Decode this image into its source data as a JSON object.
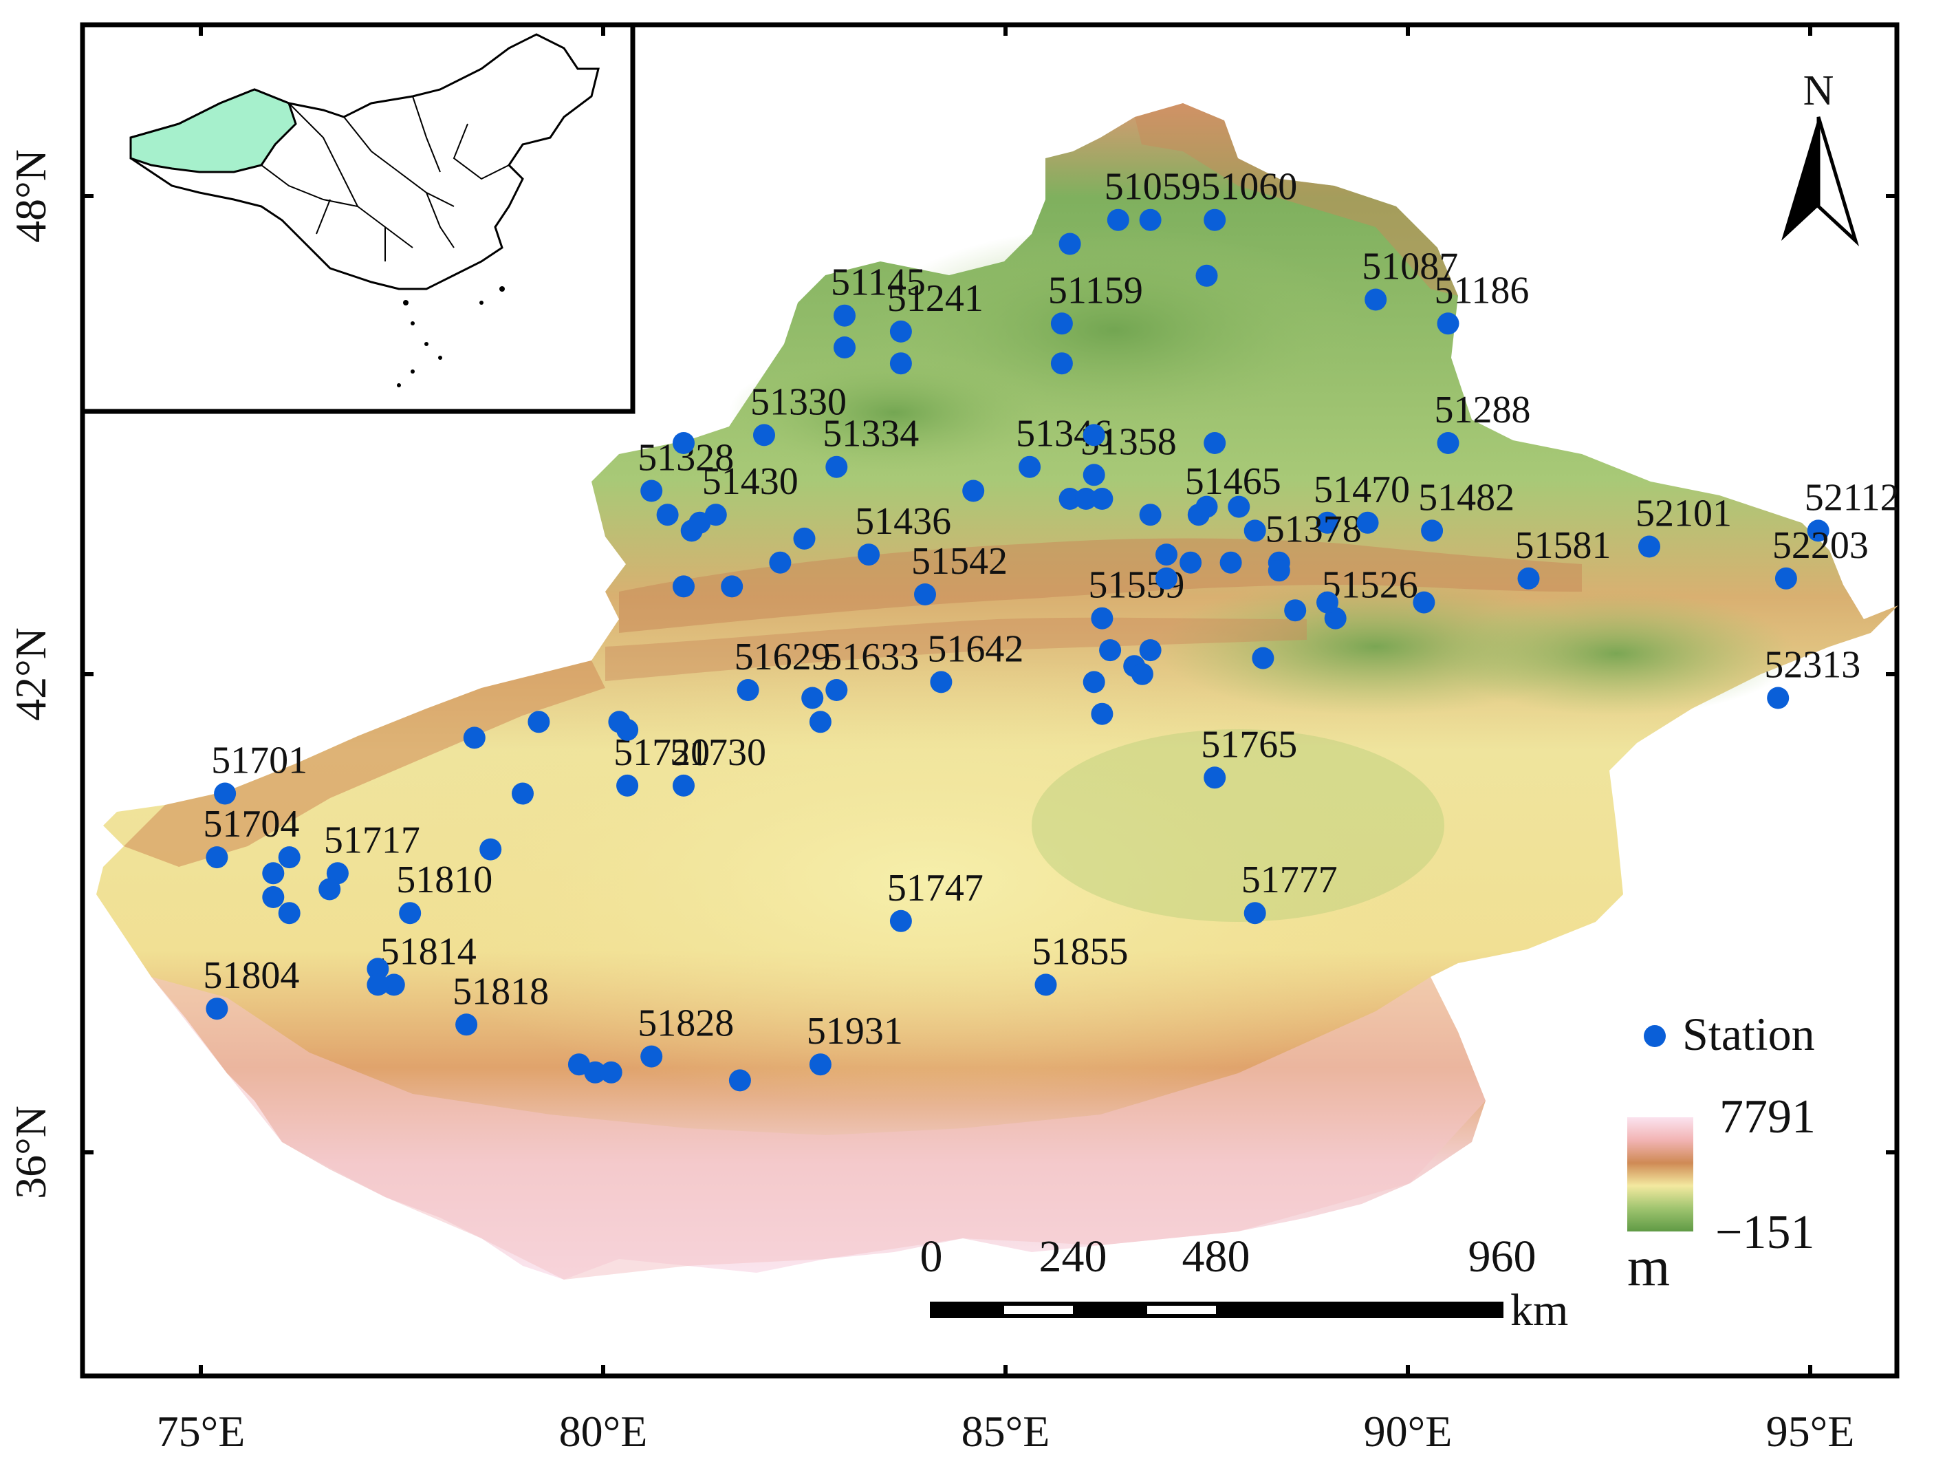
{
  "map": {
    "x_ticks": [
      "75°E",
      "80°E",
      "85°E",
      "90°E",
      "95°E"
    ],
    "y_ticks": [
      "48°N",
      "42°N",
      "36°N"
    ],
    "north_label": "N",
    "legend": {
      "station_label": "Station",
      "elevation_max": "7791",
      "elevation_min": "−151",
      "elevation_unit": "m",
      "colors": [
        "#fbe3ef",
        "#f2b4b4",
        "#cf8a55",
        "#f3e9a0",
        "#9fc46f",
        "#5f9a45"
      ]
    },
    "scale_bar": {
      "ticks": [
        "0",
        "240",
        "480",
        "960"
      ],
      "unit": "km"
    },
    "station_color": "#0a5fd8",
    "stations": [
      {
        "id": "51059",
        "lon": 86.4,
        "lat": 47.7,
        "labeled": true
      },
      {
        "id": "51060",
        "lon": 87.6,
        "lat": 47.7,
        "labeled": true
      },
      {
        "id": "51087",
        "lon": 89.6,
        "lat": 46.7,
        "labeled": true
      },
      {
        "id": "51186",
        "lon": 90.5,
        "lat": 46.4,
        "labeled": true
      },
      {
        "id": "51145",
        "lon": 83.0,
        "lat": 46.5,
        "labeled": true
      },
      {
        "id": "51241",
        "lon": 83.7,
        "lat": 46.3,
        "labeled": true
      },
      {
        "id": "51159",
        "lon": 85.7,
        "lat": 46.4,
        "labeled": true
      },
      {
        "id": "51288",
        "lon": 90.5,
        "lat": 44.9,
        "labeled": true
      },
      {
        "id": "51330",
        "lon": 82.0,
        "lat": 45.0,
        "labeled": true
      },
      {
        "id": "51334",
        "lon": 82.9,
        "lat": 44.6,
        "labeled": true
      },
      {
        "id": "51346",
        "lon": 85.3,
        "lat": 44.6,
        "labeled": true
      },
      {
        "id": "51358",
        "lon": 86.1,
        "lat": 44.5,
        "labeled": true
      },
      {
        "id": "51328",
        "lon": 80.6,
        "lat": 44.3,
        "labeled": true
      },
      {
        "id": "51430",
        "lon": 81.4,
        "lat": 44.0,
        "labeled": true
      },
      {
        "id": "51436",
        "lon": 83.3,
        "lat": 43.5,
        "labeled": true
      },
      {
        "id": "51465",
        "lon": 87.4,
        "lat": 44.0,
        "labeled": true
      },
      {
        "id": "51470",
        "lon": 89.0,
        "lat": 43.9,
        "labeled": true
      },
      {
        "id": "51482",
        "lon": 90.3,
        "lat": 43.8,
        "labeled": true
      },
      {
        "id": "51542",
        "lon": 84.0,
        "lat": 43.0,
        "labeled": true
      },
      {
        "id": "51378",
        "lon": 88.4,
        "lat": 43.4,
        "labeled": true
      },
      {
        "id": "51581",
        "lon": 91.5,
        "lat": 43.2,
        "labeled": true
      },
      {
        "id": "52101",
        "lon": 93.0,
        "lat": 43.6,
        "labeled": true
      },
      {
        "id": "52112",
        "lon": 95.1,
        "lat": 43.8,
        "labeled": true
      },
      {
        "id": "52203",
        "lon": 94.7,
        "lat": 43.2,
        "labeled": true
      },
      {
        "id": "51559",
        "lon": 86.2,
        "lat": 42.7,
        "labeled": true
      },
      {
        "id": "51526",
        "lon": 89.1,
        "lat": 42.7,
        "labeled": true
      },
      {
        "id": "51633",
        "lon": 82.9,
        "lat": 41.8,
        "labeled": true
      },
      {
        "id": "51642",
        "lon": 84.2,
        "lat": 41.9,
        "labeled": true
      },
      {
        "id": "52313",
        "lon": 94.6,
        "lat": 41.7,
        "labeled": true
      },
      {
        "id": "51629",
        "lon": 81.8,
        "lat": 41.8,
        "labeled": true
      },
      {
        "id": "51701",
        "lon": 75.3,
        "lat": 40.5,
        "labeled": true
      },
      {
        "id": "51720",
        "lon": 80.3,
        "lat": 40.6,
        "labeled": true
      },
      {
        "id": "51730",
        "lon": 81.0,
        "lat": 40.6,
        "labeled": true
      },
      {
        "id": "51765",
        "lon": 87.6,
        "lat": 40.7,
        "labeled": true
      },
      {
        "id": "51704",
        "lon": 75.2,
        "lat": 39.7,
        "labeled": true
      },
      {
        "id": "51717",
        "lon": 76.7,
        "lat": 39.5,
        "labeled": true
      },
      {
        "id": "51810",
        "lon": 77.6,
        "lat": 39.0,
        "labeled": true
      },
      {
        "id": "51747",
        "lon": 83.7,
        "lat": 38.9,
        "labeled": true
      },
      {
        "id": "51777",
        "lon": 88.1,
        "lat": 39.0,
        "labeled": true
      },
      {
        "id": "51855",
        "lon": 85.5,
        "lat": 38.1,
        "labeled": true
      },
      {
        "id": "51804",
        "lon": 75.2,
        "lat": 37.8,
        "labeled": true
      },
      {
        "id": "51814",
        "lon": 77.4,
        "lat": 38.1,
        "labeled": true
      },
      {
        "id": "51818",
        "lon": 78.3,
        "lat": 37.6,
        "labeled": true
      },
      {
        "id": "51828",
        "lon": 80.6,
        "lat": 37.2,
        "labeled": true
      },
      {
        "id": "51931",
        "lon": 82.7,
        "lat": 37.1,
        "labeled": true
      },
      {
        "lon": 86.8,
        "lat": 47.7
      },
      {
        "lon": 85.8,
        "lat": 47.4
      },
      {
        "lon": 87.5,
        "lat": 47.0
      },
      {
        "lon": 83.0,
        "lat": 46.1
      },
      {
        "lon": 83.7,
        "lat": 45.9
      },
      {
        "lon": 85.7,
        "lat": 45.9
      },
      {
        "lon": 81.0,
        "lat": 44.9
      },
      {
        "lon": 84.6,
        "lat": 44.3
      },
      {
        "lon": 86.1,
        "lat": 45.0
      },
      {
        "lon": 87.6,
        "lat": 44.9
      },
      {
        "lon": 85.8,
        "lat": 44.2
      },
      {
        "lon": 86.0,
        "lat": 44.2
      },
      {
        "lon": 86.2,
        "lat": 44.2
      },
      {
        "lon": 80.8,
        "lat": 44.0
      },
      {
        "lon": 81.1,
        "lat": 43.8
      },
      {
        "lon": 81.2,
        "lat": 43.9
      },
      {
        "lon": 82.5,
        "lat": 43.7
      },
      {
        "lon": 82.2,
        "lat": 43.4
      },
      {
        "lon": 81.0,
        "lat": 43.1
      },
      {
        "lon": 81.6,
        "lat": 43.1
      },
      {
        "lon": 86.8,
        "lat": 44.0
      },
      {
        "lon": 87.5,
        "lat": 44.1
      },
      {
        "lon": 87.9,
        "lat": 44.1
      },
      {
        "lon": 88.1,
        "lat": 43.8
      },
      {
        "lon": 89.5,
        "lat": 43.9
      },
      {
        "lon": 87.0,
        "lat": 43.5
      },
      {
        "lon": 87.3,
        "lat": 43.4
      },
      {
        "lon": 87.8,
        "lat": 43.4
      },
      {
        "lon": 87.0,
        "lat": 43.2
      },
      {
        "lon": 88.4,
        "lat": 43.3
      },
      {
        "lon": 88.6,
        "lat": 42.8
      },
      {
        "lon": 89.0,
        "lat": 42.9
      },
      {
        "lon": 90.2,
        "lat": 42.9
      },
      {
        "lon": 88.2,
        "lat": 42.2
      },
      {
        "lon": 86.3,
        "lat": 42.3
      },
      {
        "lon": 86.8,
        "lat": 42.3
      },
      {
        "lon": 86.6,
        "lat": 42.1
      },
      {
        "lon": 86.7,
        "lat": 42.0
      },
      {
        "lon": 86.1,
        "lat": 41.9
      },
      {
        "lon": 86.2,
        "lat": 41.5
      },
      {
        "lon": 82.6,
        "lat": 41.7
      },
      {
        "lon": 82.7,
        "lat": 41.4
      },
      {
        "lon": 79.2,
        "lat": 41.4
      },
      {
        "lon": 80.2,
        "lat": 41.4
      },
      {
        "lon": 78.4,
        "lat": 41.2
      },
      {
        "lon": 79.0,
        "lat": 40.5
      },
      {
        "lon": 80.3,
        "lat": 41.3
      },
      {
        "lon": 76.1,
        "lat": 39.7
      },
      {
        "lon": 75.9,
        "lat": 39.5
      },
      {
        "lon": 75.9,
        "lat": 39.2
      },
      {
        "lon": 76.1,
        "lat": 39.0
      },
      {
        "lon": 76.6,
        "lat": 39.3
      },
      {
        "lon": 78.6,
        "lat": 39.8
      },
      {
        "lon": 77.2,
        "lat": 38.3
      },
      {
        "lon": 77.2,
        "lat": 38.1
      },
      {
        "lon": 79.7,
        "lat": 37.1
      },
      {
        "lon": 79.9,
        "lat": 37.0
      },
      {
        "lon": 80.1,
        "lat": 37.0
      },
      {
        "lon": 81.7,
        "lat": 36.9
      }
    ]
  }
}
